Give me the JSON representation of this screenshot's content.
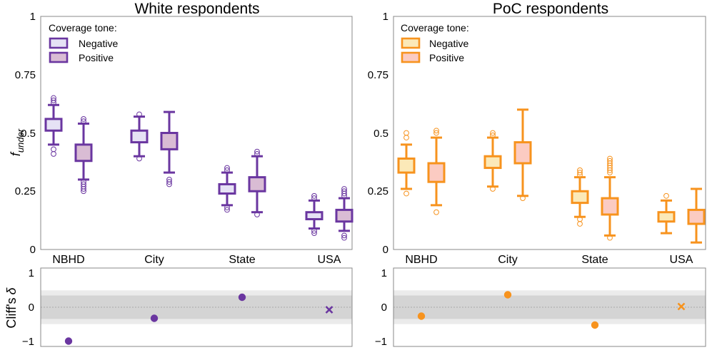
{
  "figure": {
    "ylabel_main": "f",
    "ylabel_main_sub": "under",
    "ylabel_bottom": "Cliff's",
    "ylabel_bottom_symbol": "δ"
  },
  "chart_data": [
    {
      "type": "box",
      "id": "white",
      "title": "White respondents",
      "categories": [
        "NBHD",
        "City",
        "State",
        "USA"
      ],
      "ylim": [
        0,
        1
      ],
      "yticks": [
        "0",
        "0.25",
        "0.5",
        "0.75",
        "1"
      ],
      "legend_title": "Coverage tone:",
      "legend_position": "top-left",
      "series": [
        {
          "name": "Negative",
          "color": "#6a36a0",
          "fill": "#e6e2f5",
          "boxes": [
            {
              "whislo": 0.45,
              "q1": 0.51,
              "med": 0.53,
              "q3": 0.56,
              "whishi": 0.62,
              "fliers": [
                0.41,
                0.43,
                0.63,
                0.64,
                0.65
              ]
            },
            {
              "whislo": 0.4,
              "q1": 0.46,
              "med": 0.48,
              "q3": 0.51,
              "whishi": 0.57,
              "fliers": [
                0.39,
                0.58
              ]
            },
            {
              "whislo": 0.19,
              "q1": 0.24,
              "med": 0.26,
              "q3": 0.28,
              "whishi": 0.33,
              "fliers": [
                0.17,
                0.18,
                0.34,
                0.35
              ]
            },
            {
              "whislo": 0.09,
              "q1": 0.13,
              "med": 0.15,
              "q3": 0.16,
              "whishi": 0.21,
              "fliers": [
                0.07,
                0.08,
                0.22,
                0.23
              ]
            }
          ]
        },
        {
          "name": "Positive",
          "color": "#6a36a0",
          "fill": "#d9bcd4",
          "boxes": [
            {
              "whislo": 0.3,
              "q1": 0.38,
              "med": 0.41,
              "q3": 0.45,
              "whishi": 0.54,
              "fliers": [
                0.25,
                0.26,
                0.27,
                0.28,
                0.29,
                0.55,
                0.56
              ]
            },
            {
              "whislo": 0.33,
              "q1": 0.43,
              "med": 0.45,
              "q3": 0.5,
              "whishi": 0.59,
              "fliers": [
                0.28,
                0.29,
                0.3
              ]
            },
            {
              "whislo": 0.16,
              "q1": 0.25,
              "med": 0.28,
              "q3": 0.31,
              "whishi": 0.4,
              "fliers": [
                0.15,
                0.41,
                0.42
              ]
            },
            {
              "whislo": 0.08,
              "q1": 0.12,
              "med": 0.14,
              "q3": 0.17,
              "whishi": 0.22,
              "fliers": [
                0.05,
                0.06,
                0.23,
                0.24,
                0.25,
                0.26
              ]
            }
          ]
        }
      ]
    },
    {
      "type": "box",
      "id": "poc",
      "title": "PoC respondents",
      "categories": [
        "NBHD",
        "City",
        "State",
        "USA"
      ],
      "ylim": [
        0,
        1
      ],
      "yticks": [
        "0",
        "0.25",
        "0.5",
        "0.75",
        "1"
      ],
      "legend_title": "Coverage tone:",
      "legend_position": "top-left",
      "series": [
        {
          "name": "Negative",
          "color": "#f7931e",
          "fill": "#fbe9b8",
          "boxes": [
            {
              "whislo": 0.26,
              "q1": 0.33,
              "med": 0.36,
              "q3": 0.39,
              "whishi": 0.45,
              "fliers": [
                0.24,
                0.48,
                0.5
              ]
            },
            {
              "whislo": 0.27,
              "q1": 0.35,
              "med": 0.37,
              "q3": 0.4,
              "whishi": 0.48,
              "fliers": [
                0.26,
                0.49,
                0.5
              ]
            },
            {
              "whislo": 0.14,
              "q1": 0.2,
              "med": 0.22,
              "q3": 0.25,
              "whishi": 0.31,
              "fliers": [
                0.11,
                0.13,
                0.32,
                0.33,
                0.34
              ]
            },
            {
              "whislo": 0.07,
              "q1": 0.12,
              "med": 0.14,
              "q3": 0.16,
              "whishi": 0.21,
              "fliers": [
                0.23
              ]
            }
          ]
        },
        {
          "name": "Positive",
          "color": "#f7931e",
          "fill": "#fbcbc2",
          "boxes": [
            {
              "whislo": 0.19,
              "q1": 0.29,
              "med": 0.32,
              "q3": 0.37,
              "whishi": 0.48,
              "fliers": [
                0.16,
                0.5,
                0.51
              ]
            },
            {
              "whislo": 0.23,
              "q1": 0.37,
              "med": 0.41,
              "q3": 0.46,
              "whishi": 0.6,
              "fliers": [
                0.22
              ]
            },
            {
              "whislo": 0.06,
              "q1": 0.15,
              "med": 0.18,
              "q3": 0.22,
              "whishi": 0.31,
              "fliers": [
                0.05,
                0.33,
                0.34,
                0.35,
                0.36,
                0.37,
                0.38,
                0.39
              ]
            },
            {
              "whislo": 0.03,
              "q1": 0.11,
              "med": 0.14,
              "q3": 0.17,
              "whishi": 0.26,
              "fliers": []
            }
          ]
        }
      ]
    },
    {
      "type": "scatter",
      "id": "white-cliff",
      "ylabel": "Cliff's δ",
      "categories": [
        "NBHD",
        "City",
        "State",
        "USA"
      ],
      "ylim": [
        -1.1,
        1.1
      ],
      "yticks": [
        "−1",
        "0",
        "1"
      ],
      "bands": [
        {
          "from": -0.474,
          "to": 0.474,
          "color": "#ebebeb"
        },
        {
          "from": -0.33,
          "to": 0.33,
          "color": "#d4d4d4"
        }
      ],
      "points": [
        {
          "category": "NBHD",
          "value": -0.95,
          "marker": "dot"
        },
        {
          "category": "City",
          "value": -0.31,
          "marker": "dot"
        },
        {
          "category": "State",
          "value": 0.28,
          "marker": "dot"
        },
        {
          "category": "USA",
          "value": -0.07,
          "marker": "cross"
        }
      ],
      "color": "#6a36a0"
    },
    {
      "type": "scatter",
      "id": "poc-cliff",
      "ylabel": "Cliff's δ",
      "categories": [
        "NBHD",
        "City",
        "State",
        "USA"
      ],
      "ylim": [
        -1.1,
        1.1
      ],
      "yticks": [
        "−1",
        "0",
        "1"
      ],
      "bands": [
        {
          "from": -0.474,
          "to": 0.474,
          "color": "#ebebeb"
        },
        {
          "from": -0.33,
          "to": 0.33,
          "color": "#d4d4d4"
        }
      ],
      "points": [
        {
          "category": "NBHD",
          "value": -0.25,
          "marker": "dot"
        },
        {
          "category": "City",
          "value": 0.35,
          "marker": "dot"
        },
        {
          "category": "State",
          "value": -0.5,
          "marker": "dot"
        },
        {
          "category": "USA",
          "value": 0.02,
          "marker": "cross"
        }
      ],
      "color": "#f7931e"
    }
  ]
}
